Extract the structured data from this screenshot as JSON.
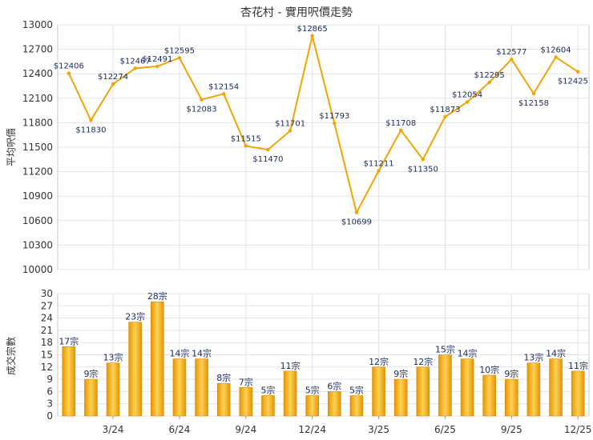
{
  "chart_data": [
    {
      "type": "line",
      "title": "杏花村 - 實用呎價走勢",
      "ylabel": "平均呎價",
      "ylim": [
        10000,
        13000
      ],
      "yticks": [
        10000,
        10300,
        10600,
        10900,
        11200,
        11500,
        11800,
        12100,
        12400,
        12700,
        13000
      ],
      "grid": true,
      "color": "#f5a300",
      "labels": [
        "$12406",
        "$11830",
        "$12274",
        "$12467",
        "$12491",
        "$12595",
        "$12083",
        "$12154",
        "$11515",
        "$11470",
        "$11701",
        "$12865",
        "$11793",
        "$10699",
        "$11211",
        "$11708",
        "$11350",
        "$11873",
        "$12054",
        "$12295",
        "$12577",
        "$12158",
        "$12604",
        "$12425"
      ],
      "values": [
        12406,
        11830,
        12274,
        12467,
        12491,
        12595,
        12083,
        12154,
        11515,
        11470,
        11701,
        12865,
        11793,
        10699,
        11211,
        11708,
        11350,
        11873,
        12054,
        12295,
        12577,
        12158,
        12604,
        12425
      ]
    },
    {
      "type": "bar",
      "ylabel": "成交宗數",
      "ylim": [
        0,
        30
      ],
      "yticks": [
        0,
        3,
        6,
        9,
        12,
        15,
        18,
        21,
        24,
        27,
        30
      ],
      "grid": true,
      "color": "#f5a300",
      "xtick_labels": [
        "3/24",
        "6/24",
        "9/24",
        "12/24",
        "3/25",
        "6/25",
        "9/25",
        "12/25"
      ],
      "xtick_index": [
        2,
        5,
        8,
        11,
        14,
        17,
        20,
        23
      ],
      "labels": [
        "17宗",
        "9宗",
        "13宗",
        "23宗",
        "28宗",
        "14宗",
        "14宗",
        "8宗",
        "7宗",
        "5宗",
        "11宗",
        "5宗",
        "6宗",
        "5宗",
        "12宗",
        "9宗",
        "12宗",
        "15宗",
        "14宗",
        "10宗",
        "9宗",
        "13宗",
        "14宗",
        "11宗"
      ],
      "values": [
        17,
        9,
        13,
        23,
        28,
        14,
        14,
        8,
        7,
        5,
        11,
        5,
        6,
        5,
        12,
        9,
        12,
        15,
        14,
        10,
        9,
        13,
        14,
        11
      ]
    }
  ]
}
